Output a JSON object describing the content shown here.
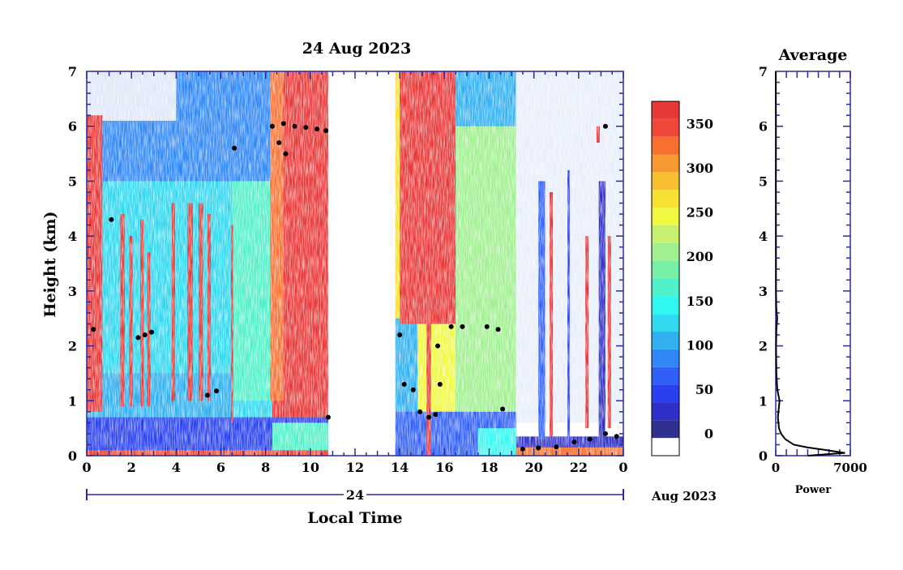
{
  "chart_data": {
    "type": "heatmap",
    "title": "24 Aug 2023",
    "xlabel": "Local Time",
    "ylabel": "Height (km)",
    "x_tick_labels": [
      "0",
      "2",
      "4",
      "6",
      "8",
      "10",
      "12",
      "14",
      "16",
      "18",
      "20",
      "22",
      "0"
    ],
    "y_tick_labels": [
      "0",
      "1",
      "2",
      "3",
      "4",
      "5",
      "6",
      "7"
    ],
    "xlim": [
      0,
      24
    ],
    "ylim": [
      0,
      7
    ],
    "day_label": "24",
    "month_label": "Aug 2023",
    "colorbar": {
      "tick_labels": [
        "0",
        "50",
        "100",
        "150",
        "200",
        "250",
        "300",
        "350"
      ],
      "range": [
        -25,
        375
      ],
      "colors": [
        "#ffffff",
        "#303090",
        "#3030c8",
        "#2840f0",
        "#3060f8",
        "#3088f8",
        "#30b0f0",
        "#30d8f0",
        "#30f8f0",
        "#50f0c8",
        "#78f0a8",
        "#a0f090",
        "#c8f070",
        "#f0f840",
        "#f8e030",
        "#f8c030",
        "#f89830",
        "#f87030",
        "#f04838",
        "#e83838"
      ],
      "data_gap": [
        10.8,
        13.8
      ]
    },
    "side_panel": {
      "title": "Average",
      "xlabel": "Power",
      "x_tick_labels": [
        "0",
        "7000"
      ],
      "y_tick_labels": [
        "0",
        "1",
        "2",
        "3",
        "4",
        "5",
        "6",
        "7"
      ],
      "xlim": [
        0,
        7000
      ],
      "ylim": [
        0,
        7
      ],
      "profile": [
        [
          0,
          3000
        ],
        [
          0.05,
          6500
        ],
        [
          0.1,
          4800
        ],
        [
          0.15,
          3000
        ],
        [
          0.2,
          1700
        ],
        [
          0.3,
          900
        ],
        [
          0.4,
          500
        ],
        [
          0.5,
          300
        ],
        [
          0.7,
          200
        ],
        [
          1.0,
          360
        ],
        [
          1.2,
          150
        ],
        [
          1.5,
          60
        ],
        [
          2.0,
          30
        ],
        [
          2.3,
          60
        ],
        [
          2.5,
          140
        ],
        [
          2.7,
          50
        ],
        [
          3.0,
          25
        ],
        [
          4.0,
          20
        ],
        [
          5.0,
          15
        ],
        [
          6.0,
          20
        ],
        [
          6.5,
          10
        ],
        [
          7.0,
          8
        ]
      ]
    }
  }
}
